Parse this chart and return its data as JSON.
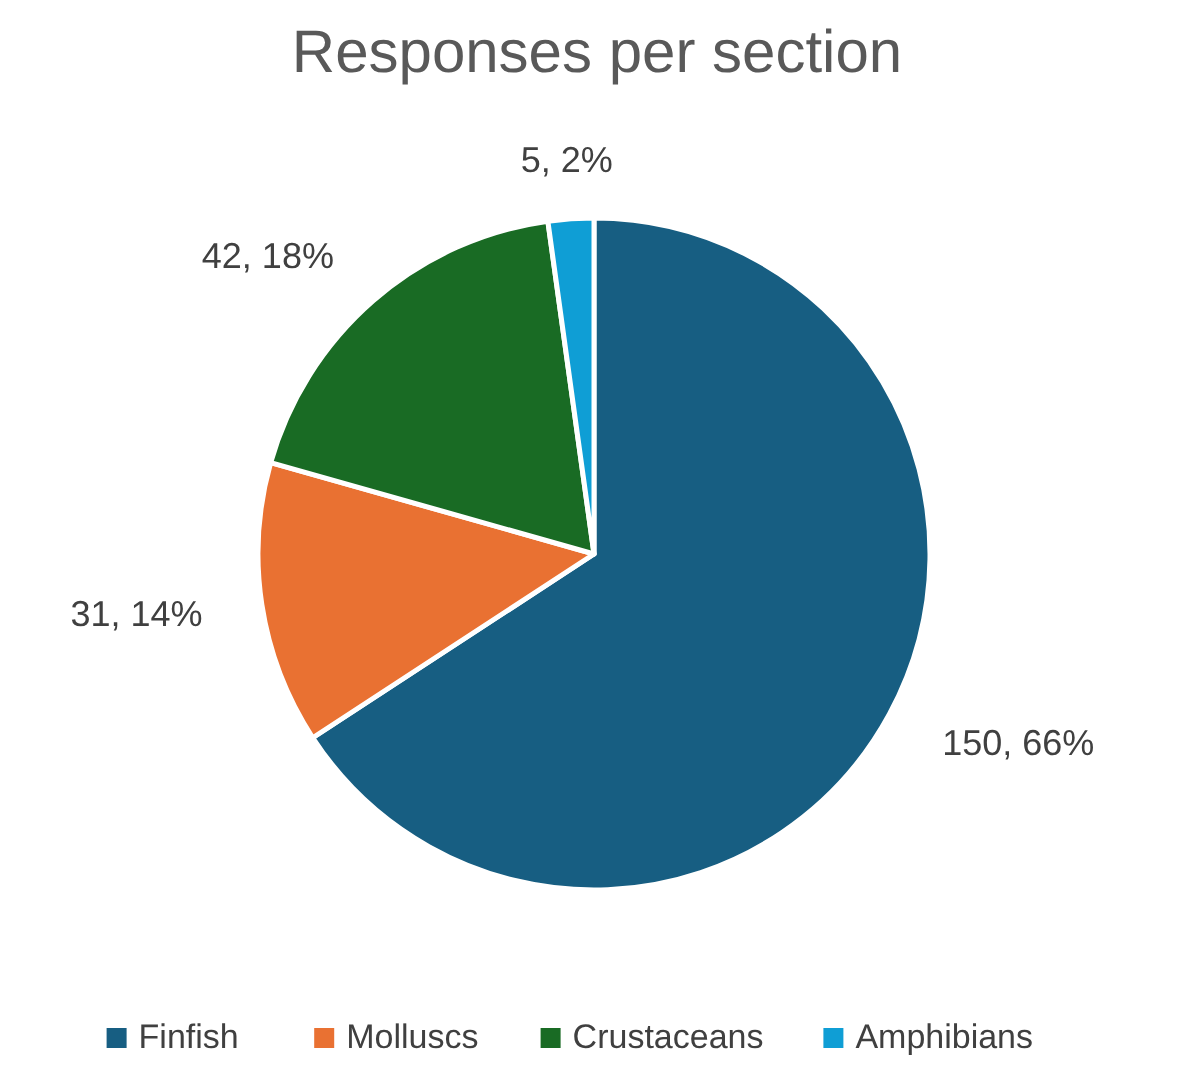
{
  "chart_data": {
    "type": "pie",
    "title": "Responses per section",
    "categories": [
      "Finfish",
      "Molluscs",
      "Crustaceans",
      "Amphibians"
    ],
    "values": [
      150,
      31,
      42,
      5
    ],
    "colors": [
      "#175e82",
      "#e97132",
      "#196b24",
      "#0f9ed5"
    ],
    "value_labels": [
      "150, 66%",
      "31, 14%",
      "42, 18%",
      "5, 2%"
    ],
    "legend": "bottom"
  }
}
